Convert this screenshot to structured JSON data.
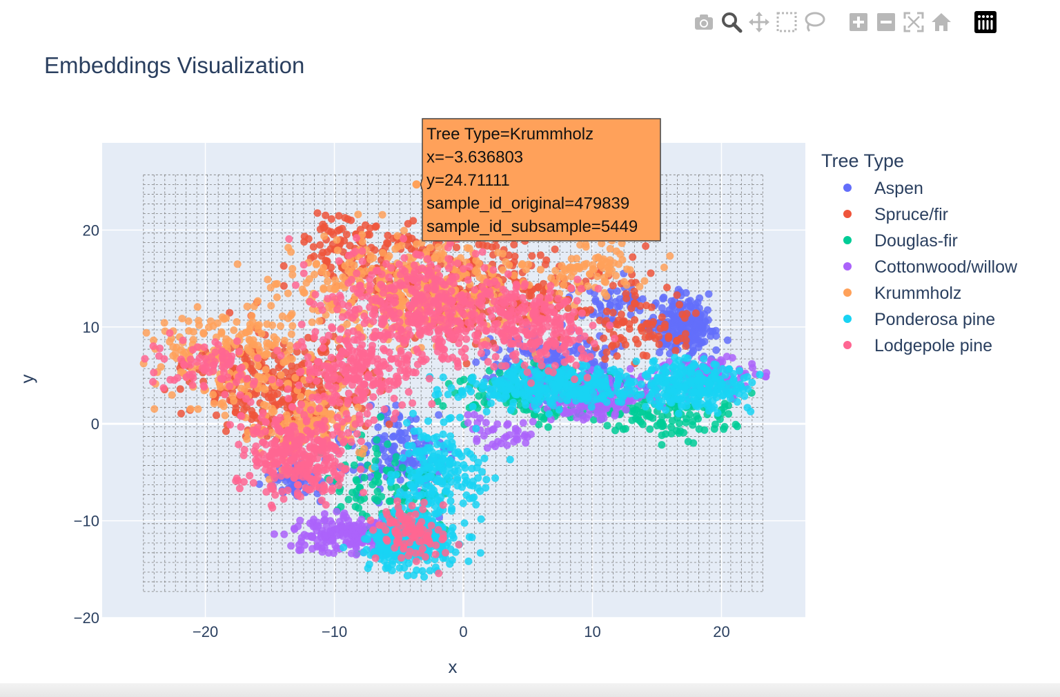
{
  "toolbar": {
    "buttons": [
      {
        "name": "download-plot-button",
        "icon": "camera-icon",
        "color": "#b8b8b8"
      },
      {
        "name": "zoom-button",
        "icon": "zoom-icon",
        "color": "#555555",
        "active": true
      },
      {
        "name": "pan-button",
        "icon": "pan-icon",
        "color": "#b8b8b8"
      },
      {
        "name": "box-select-button",
        "icon": "box-select-icon",
        "color": "#b8b8b8"
      },
      {
        "name": "lasso-select-button",
        "icon": "lasso-icon",
        "color": "#b8b8b8"
      },
      {
        "name": "zoom-in-button",
        "icon": "zoom-in-icon",
        "color": "#b8b8b8"
      },
      {
        "name": "zoom-out-button",
        "icon": "zoom-out-icon",
        "color": "#b8b8b8"
      },
      {
        "name": "autoscale-button",
        "icon": "autoscale-icon",
        "color": "#b8b8b8"
      },
      {
        "name": "reset-axes-button",
        "icon": "home-icon",
        "color": "#b8b8b8"
      },
      {
        "name": "plotly-logo-button",
        "icon": "plotly-logo-icon",
        "color": "#000000"
      }
    ]
  },
  "chart_data": {
    "type": "scatter",
    "title": "Embeddings Visualization",
    "xlabel": "x",
    "ylabel": "y",
    "xlim": [
      -28,
      26.5
    ],
    "ylim": [
      -20,
      29
    ],
    "xticks": [
      -20,
      -10,
      0,
      10,
      20
    ],
    "yticks": [
      -20,
      -10,
      0,
      10,
      20
    ],
    "grid": true,
    "legend_title": "Tree Type",
    "legend_position": "right",
    "selection_grid": {
      "x_range": [
        -24.8,
        23.2
      ],
      "y_range": [
        -17.3,
        25.7
      ],
      "columns": 58,
      "rows": 43
    },
    "series": [
      {
        "name": "Aspen",
        "color": "#636efa",
        "clusters": [
          {
            "x": 17,
            "y": 10,
            "sx": 1.8,
            "sy": 2,
            "n": 220
          },
          {
            "x": 7,
            "y": 6,
            "sx": 4,
            "sy": 2.5,
            "n": 200
          },
          {
            "x": -5,
            "y": -3,
            "sx": 3,
            "sy": 3,
            "n": 150
          },
          {
            "x": -13,
            "y": -6,
            "sx": 1.5,
            "sy": 1.5,
            "n": 70
          },
          {
            "x": 12,
            "y": 12,
            "sx": 2,
            "sy": 2,
            "n": 60
          }
        ]
      },
      {
        "name": "Spruce/fir",
        "color": "#ef553b",
        "clusters": [
          {
            "x": -14,
            "y": 4,
            "sx": 5,
            "sy": 4,
            "n": 300
          },
          {
            "x": 2,
            "y": 14,
            "sx": 7,
            "sy": 4,
            "n": 300
          },
          {
            "x": -8,
            "y": 18,
            "sx": 4,
            "sy": 3,
            "n": 120
          },
          {
            "x": 14,
            "y": 10,
            "sx": 3,
            "sy": 3,
            "n": 80
          }
        ]
      },
      {
        "name": "Douglas-fir",
        "color": "#00cc96",
        "clusters": [
          {
            "x": -6,
            "y": -7,
            "sx": 3,
            "sy": 4,
            "n": 100
          },
          {
            "x": 6,
            "y": 3,
            "sx": 5,
            "sy": 2,
            "n": 150
          },
          {
            "x": 16,
            "y": 1,
            "sx": 4,
            "sy": 2,
            "n": 120
          }
        ]
      },
      {
        "name": "Cottonwood/willow",
        "color": "#ab63fa",
        "clusters": [
          {
            "x": -9,
            "y": -11.5,
            "sx": 3,
            "sy": 1.3,
            "n": 180
          },
          {
            "x": 10,
            "y": 3,
            "sx": 3.5,
            "sy": 1.8,
            "n": 220
          },
          {
            "x": 19,
            "y": 5,
            "sx": 2.5,
            "sy": 1.5,
            "n": 120
          },
          {
            "x": 3,
            "y": -1,
            "sx": 2,
            "sy": 1.5,
            "n": 40
          }
        ]
      },
      {
        "name": "Krummholz",
        "color": "#ffa15a",
        "clusters": [
          {
            "x": -18,
            "y": 7,
            "sx": 4.5,
            "sy": 3.5,
            "n": 200
          },
          {
            "x": -4,
            "y": 14,
            "sx": 7,
            "sy": 4,
            "n": 400
          },
          {
            "x": -12,
            "y": 0,
            "sx": 3,
            "sy": 3,
            "n": 150
          },
          {
            "x": 10,
            "y": 16,
            "sx": 3,
            "sy": 2,
            "n": 80
          }
        ]
      },
      {
        "name": "Ponderosa pine",
        "color": "#19d3f3",
        "clusters": [
          {
            "x": -4,
            "y": -12,
            "sx": 2.5,
            "sy": 2,
            "n": 350
          },
          {
            "x": -2,
            "y": -5,
            "sx": 2.5,
            "sy": 3.5,
            "n": 200
          },
          {
            "x": 7,
            "y": 4,
            "sx": 5,
            "sy": 1.5,
            "n": 350
          },
          {
            "x": 18,
            "y": 4,
            "sx": 3,
            "sy": 1.8,
            "n": 250
          }
        ]
      },
      {
        "name": "Lodgepole pine",
        "color": "#ff6692",
        "clusters": [
          {
            "x": -13,
            "y": -3,
            "sx": 3,
            "sy": 3,
            "n": 300
          },
          {
            "x": -3,
            "y": 12,
            "sx": 6,
            "sy": 4,
            "n": 450
          },
          {
            "x": -8,
            "y": 5,
            "sx": 4,
            "sy": 3,
            "n": 200
          },
          {
            "x": -20,
            "y": 6,
            "sx": 3,
            "sy": 2,
            "n": 80
          },
          {
            "x": 6,
            "y": 10,
            "sx": 3,
            "sy": 3,
            "n": 200
          },
          {
            "x": -4,
            "y": -11,
            "sx": 2,
            "sy": 2,
            "n": 100
          }
        ]
      }
    ],
    "hover": {
      "series": "Krummholz",
      "x": -3.636803,
      "y": 24.71111,
      "lines": [
        "Tree Type=Krummholz",
        "x=−3.636803",
        "y=24.71111",
        "sample_id_original=479839",
        "sample_id_subsample=5449"
      ]
    }
  }
}
